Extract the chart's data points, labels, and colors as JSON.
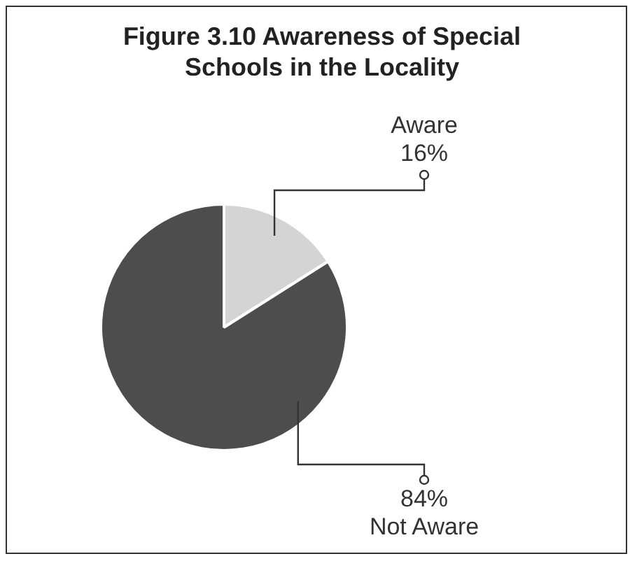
{
  "chart_data": {
    "type": "pie",
    "title": "Figure 3.10 Awareness of Special Schools in the Locality",
    "categories": [
      "Aware",
      "Not Aware"
    ],
    "values": [
      16,
      84
    ],
    "colors": [
      "#d4d4d4",
      "#4d4d4d"
    ],
    "value_labels": [
      "16%",
      "84%"
    ]
  }
}
